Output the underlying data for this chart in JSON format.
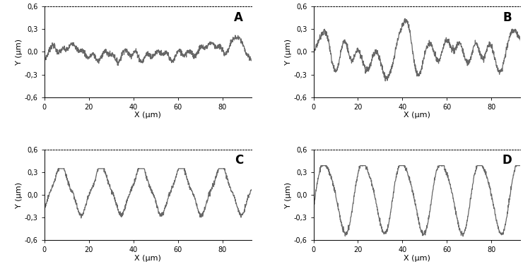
{
  "panels": [
    "A",
    "B",
    "C",
    "D"
  ],
  "xlabel": "X (μm)",
  "ylabel": "Y (μm)",
  "xlim": [
    0,
    93
  ],
  "ylim": [
    -0.6,
    0.6
  ],
  "yticks": [
    -0.6,
    -0.3,
    0.0,
    0.3,
    0.6
  ],
  "ytick_labels": [
    "-0,6",
    "-0,3",
    "0,0",
    "0,3",
    "0,6"
  ],
  "xticks": [
    0,
    20,
    40,
    60,
    80
  ],
  "background_color": "#ffffff",
  "line_color": "#666666",
  "line_width": 0.9,
  "figsize": [
    7.4,
    3.74
  ],
  "dpi": 100
}
